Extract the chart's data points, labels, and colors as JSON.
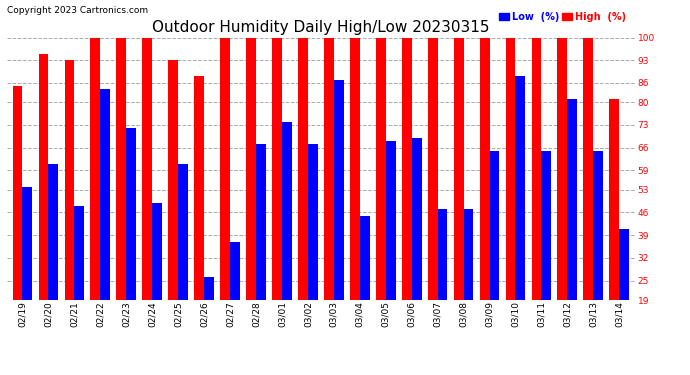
{
  "title": "Outdoor Humidity Daily High/Low 20230315",
  "copyright": "Copyright 2023 Cartronics.com",
  "legend_low": "Low  (%)",
  "legend_high": "High  (%)",
  "dates": [
    "02/19",
    "02/20",
    "02/21",
    "02/22",
    "02/23",
    "02/24",
    "02/25",
    "02/26",
    "02/27",
    "02/28",
    "03/01",
    "03/02",
    "03/03",
    "03/04",
    "03/05",
    "03/06",
    "03/07",
    "03/08",
    "03/09",
    "03/10",
    "03/11",
    "03/12",
    "03/13",
    "03/14"
  ],
  "high_values": [
    85,
    95,
    93,
    100,
    100,
    100,
    93,
    88,
    100,
    100,
    100,
    100,
    100,
    100,
    100,
    100,
    100,
    100,
    100,
    100,
    100,
    100,
    100,
    81
  ],
  "low_values": [
    54,
    61,
    48,
    84,
    72,
    49,
    61,
    26,
    37,
    67,
    74,
    67,
    87,
    45,
    68,
    69,
    47,
    47,
    65,
    88,
    65,
    81,
    65,
    41
  ],
  "ylim_min": 19,
  "ylim_max": 100,
  "yticks": [
    19,
    25,
    32,
    39,
    46,
    53,
    59,
    66,
    73,
    80,
    86,
    93,
    100
  ],
  "bar_width": 0.38,
  "high_color": "#ff0000",
  "low_color": "#0000ff",
  "bg_color": "#ffffff",
  "grid_color": "#aaaaaa",
  "title_fontsize": 11,
  "tick_fontsize": 6.5,
  "copyright_fontsize": 6.5
}
